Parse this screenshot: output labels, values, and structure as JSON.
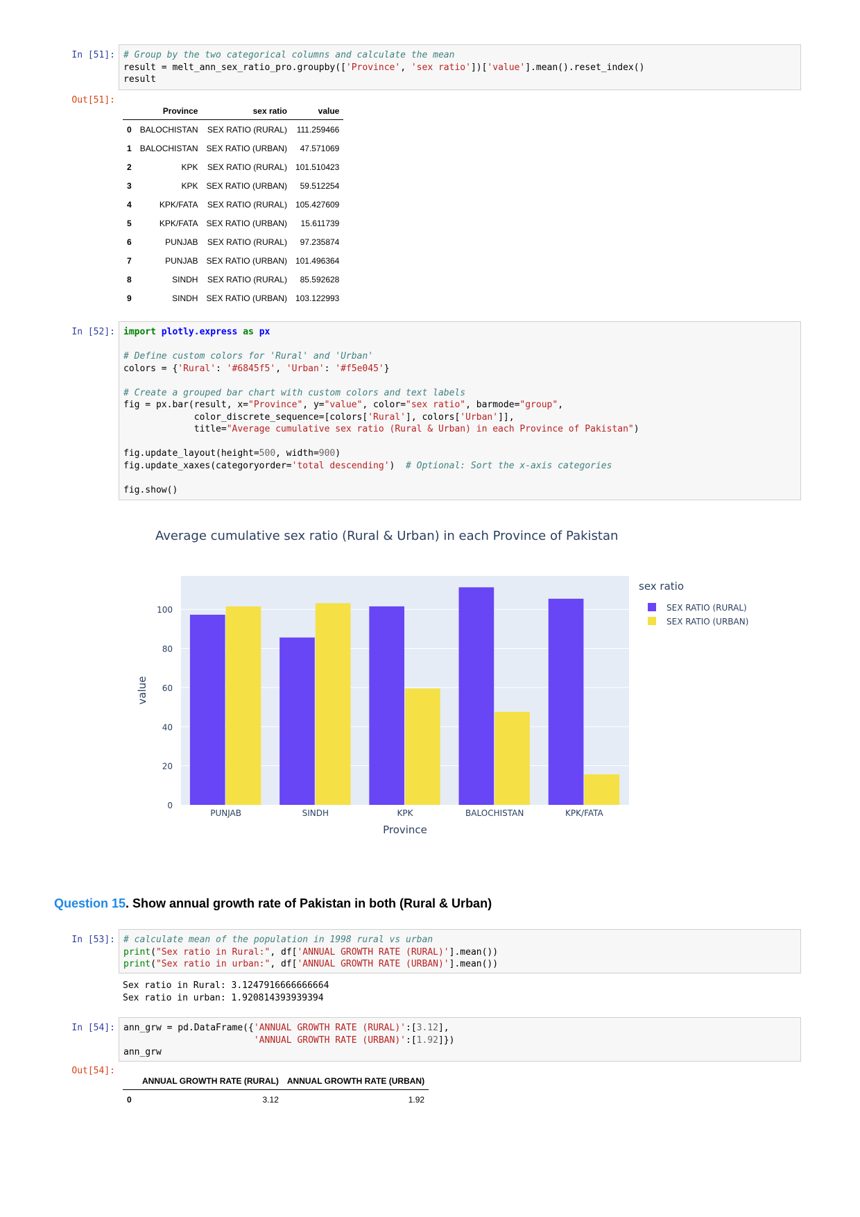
{
  "cell51": {
    "in_prompt": "In [51]:",
    "out_prompt": "Out[51]:",
    "code_line1": "# Group by the two categorical columns and calculate the mean",
    "code_line2_a": "result = melt_ann_sex_ratio_pro.groupby([",
    "code_line2_s1": "'Province'",
    "code_line2_b": ", ",
    "code_line2_s2": "'sex ratio'",
    "code_line2_c": "])[",
    "code_line2_s3": "'value'",
    "code_line2_d": "].mean().reset_index()",
    "code_line3": "result",
    "table": {
      "headers": [
        "",
        "Province",
        "sex ratio",
        "value"
      ],
      "rows": [
        [
          "0",
          "BALOCHISTAN",
          "SEX RATIO (RURAL)",
          "111.259466"
        ],
        [
          "1",
          "BALOCHISTAN",
          "SEX RATIO (URBAN)",
          "47.571069"
        ],
        [
          "2",
          "KPK",
          "SEX RATIO (RURAL)",
          "101.510423"
        ],
        [
          "3",
          "KPK",
          "SEX RATIO (URBAN)",
          "59.512254"
        ],
        [
          "4",
          "KPK/FATA",
          "SEX RATIO (RURAL)",
          "105.427609"
        ],
        [
          "5",
          "KPK/FATA",
          "SEX RATIO (URBAN)",
          "15.611739"
        ],
        [
          "6",
          "PUNJAB",
          "SEX RATIO (RURAL)",
          "97.235874"
        ],
        [
          "7",
          "PUNJAB",
          "SEX RATIO (URBAN)",
          "101.496364"
        ],
        [
          "8",
          "SINDH",
          "SEX RATIO (RURAL)",
          "85.592628"
        ],
        [
          "9",
          "SINDH",
          "SEX RATIO (URBAN)",
          "103.122993"
        ]
      ]
    }
  },
  "cell52": {
    "in_prompt": "In [52]:",
    "kw_import": "import",
    "mod_name": "plotly.express",
    "kw_as": "as",
    "mod_alias": "px",
    "cm1": "# Define custom colors for 'Rural' and 'Urban'",
    "colors_a": "colors = {",
    "colors_s1": "'Rural'",
    "colors_b": ": ",
    "colors_s2": "'#6845f5'",
    "colors_c": ", ",
    "colors_s3": "'Urban'",
    "colors_d": ": ",
    "colors_s4": "'#f5e045'",
    "colors_e": "}",
    "cm2": "# Create a grouped bar chart with custom colors and text labels",
    "fig_a": "fig = px.bar(result, x=",
    "fig_s1": "\"Province\"",
    "fig_b": ", y=",
    "fig_s2": "\"value\"",
    "fig_c": ", color=",
    "fig_s3": "\"sex ratio\"",
    "fig_d": ", barmode=",
    "fig_s4": "\"group\"",
    "fig_e": ",",
    "fig2_a": "             color_discrete_sequence=[colors[",
    "fig2_s1": "'Rural'",
    "fig2_b": "], colors[",
    "fig2_s2": "'Urban'",
    "fig2_c": "]],",
    "fig3_a": "             title=",
    "fig3_s1": "\"Average cumulative sex ratio (Rural & Urban) in each Province of Pakistan\"",
    "fig3_b": ")",
    "upd_a": "fig.update_layout(height=",
    "upd_n1": "500",
    "upd_b": ", width=",
    "upd_n2": "900",
    "upd_c": ")",
    "upx_a": "fig.update_xaxes(categoryorder=",
    "upx_s1": "'total descending'",
    "upx_b": ")  ",
    "upx_cm": "# Optional: Sort the x-axis categories",
    "show": "fig.show()"
  },
  "chart_data": {
    "type": "bar",
    "title": "Average cumulative sex ratio (Rural & Urban) in each Province of Pakistan",
    "xlabel": "Province",
    "ylabel": "value",
    "legend_title": "sex ratio",
    "legend_position": "right",
    "categories": [
      "PUNJAB",
      "SINDH",
      "KPK",
      "BALOCHISTAN",
      "KPK/FATA"
    ],
    "series": [
      {
        "name": "SEX RATIO (RURAL)",
        "color": "#6845f5",
        "values": [
          97.235874,
          85.592628,
          101.510423,
          111.259466,
          105.427609
        ]
      },
      {
        "name": "SEX RATIO (URBAN)",
        "color": "#f5e045",
        "values": [
          101.496364,
          103.122993,
          59.512254,
          47.571069,
          15.611739
        ]
      }
    ],
    "yticks": [
      0,
      20,
      40,
      60,
      80,
      100
    ],
    "ylim": [
      0,
      117.1
    ],
    "grid": true,
    "plot_bg": "#e5ecf6"
  },
  "question15": {
    "num": "Question 15",
    "text": ". Show annual growth rate of Pakistan in both (Rural & Urban)"
  },
  "cell53": {
    "in_prompt": "In [53]:",
    "cm": "# calculate mean of the population in 1998 rural vs urban",
    "p1_fn": "print",
    "p1_a": "(",
    "p1_s1": "\"Sex ratio in Rural:\"",
    "p1_b": ", df[",
    "p1_s2": "'ANNUAL GROWTH RATE (RURAL)'",
    "p1_c": "].mean())",
    "p2_fn": "print",
    "p2_a": "(",
    "p2_s1": "\"Sex ratio in urban:\"",
    "p2_b": ", df[",
    "p2_s2": "'ANNUAL GROWTH RATE (URBAN)'",
    "p2_c": "].mean())",
    "out1": "Sex ratio in Rural: 3.1247916666666664",
    "out2": "Sex ratio in urban: 1.920814393939394"
  },
  "cell54": {
    "in_prompt": "In [54]:",
    "out_prompt": "Out[54]:",
    "l1_a": "ann_grw = pd.DataFrame({",
    "l1_s1": "'ANNUAL GROWTH RATE (RURAL)'",
    "l1_b": ":[",
    "l1_n1": "3.12",
    "l1_c": "],",
    "l2_a": "                        ",
    "l2_s1": "'ANNUAL GROWTH RATE (URBAN)'",
    "l2_b": ":[",
    "l2_n1": "1.92",
    "l2_c": "]})",
    "l3": "ann_grw",
    "table": {
      "headers": [
        "",
        "ANNUAL GROWTH RATE (RURAL)",
        "ANNUAL GROWTH RATE (URBAN)"
      ],
      "rows": [
        [
          "0",
          "3.12",
          "1.92"
        ]
      ]
    }
  }
}
